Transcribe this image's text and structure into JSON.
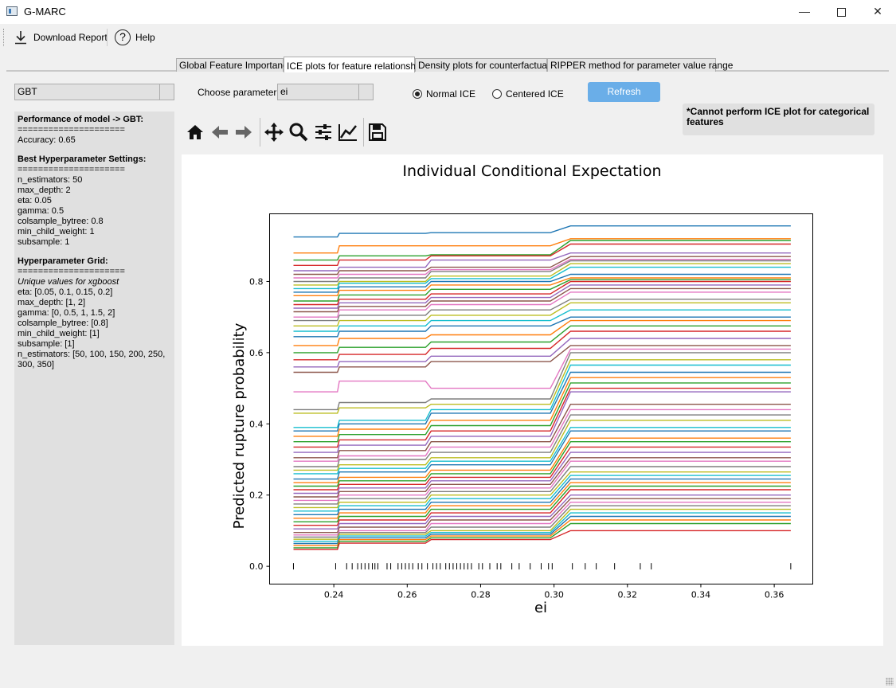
{
  "window": {
    "title": "G-MARC"
  },
  "toolbar": {
    "download_label": "Download Report",
    "help_label": "Help"
  },
  "tabs": [
    {
      "label": "Global Feature Importance"
    },
    {
      "label": "ICE plots for feature relationship"
    },
    {
      "label": "Density plots for counterfactuals"
    },
    {
      "label": "RIPPER method for parameter value range"
    }
  ],
  "controls": {
    "model_value": "GBT",
    "parameter_label": "Choose parameter",
    "parameter_value": "ei",
    "radio_normal": "Normal ICE",
    "radio_centered": "Centered ICE",
    "selected_mode": "Normal ICE",
    "refresh_label": "Refresh",
    "warning": "*Cannot perform ICE plot for categorical features"
  },
  "info": {
    "perf_title": "Performance of model -> GBT:",
    "rule": "=====================",
    "accuracy": "Accuracy: 0.65",
    "best_title": "Best Hyperparameter Settings:",
    "best": [
      "n_estimators: 50",
      "max_depth: 2",
      "eta: 0.05",
      "gamma: 0.5",
      "colsample_bytree: 0.8",
      "min_child_weight: 1",
      "subsample: 1"
    ],
    "grid_title": "Hyperparameter Grid:",
    "grid_subtitle": "Unique values for xgboost",
    "grid": [
      "eta: [0.05, 0.1, 0.15, 0.2]",
      "max_depth: [1, 2]",
      "gamma: [0, 0.5, 1, 1.5, 2]",
      "colsample_bytree: [0.8]",
      "min_child_weight: [1]",
      "subsample: [1]",
      "n_estimators: [50, 100, 150, 200, 250, 300, 350]"
    ]
  },
  "chart_data": {
    "type": "line",
    "title": "Individual Conditional Expectation",
    "xlabel": "ei",
    "ylabel": "Predicted rupture probability",
    "xlim": [
      0.2225,
      0.3705
    ],
    "ylim": [
      -0.05,
      0.99
    ],
    "xticks": [
      0.24,
      0.26,
      0.28,
      0.3,
      0.32,
      0.34,
      0.36
    ],
    "yticks": [
      0.0,
      0.2,
      0.4,
      0.6,
      0.8
    ],
    "grid": false,
    "x": [
      0.229,
      0.241,
      0.2415,
      0.265,
      0.2665,
      0.299,
      0.3045,
      0.3645
    ],
    "rug_y": 0.0,
    "rug": [
      0.229,
      0.2405,
      0.2435,
      0.245,
      0.2465,
      0.2475,
      0.2485,
      0.2495,
      0.2505,
      0.2512,
      0.252,
      0.2545,
      0.2555,
      0.2575,
      0.2585,
      0.2595,
      0.2605,
      0.2615,
      0.263,
      0.264,
      0.2655,
      0.267,
      0.268,
      0.269,
      0.2705,
      0.2715,
      0.2725,
      0.2735,
      0.2745,
      0.2755,
      0.2765,
      0.2775,
      0.2795,
      0.2805,
      0.2825,
      0.2845,
      0.2855,
      0.2885,
      0.2905,
      0.2935,
      0.2965,
      0.2985,
      0.2995,
      0.305,
      0.3085,
      0.3115,
      0.3165,
      0.3235,
      0.3265,
      0.3645
    ],
    "colors": [
      "#1f77b4",
      "#ff7f0e",
      "#2ca02c",
      "#d62728",
      "#9467bd",
      "#8c564b",
      "#e377c2",
      "#7f7f7f",
      "#bcbd22",
      "#17becf"
    ],
    "series": [
      {
        "values": [
          0.925,
          0.925,
          0.935,
          0.935,
          0.937,
          0.937,
          0.956,
          0.956
        ]
      },
      {
        "values": [
          0.88,
          0.88,
          0.9,
          0.9,
          0.9,
          0.9,
          0.92,
          0.92
        ]
      },
      {
        "values": [
          0.86,
          0.86,
          0.872,
          0.872,
          0.875,
          0.875,
          0.915,
          0.915
        ]
      },
      {
        "values": [
          0.845,
          0.845,
          0.86,
          0.86,
          0.872,
          0.872,
          0.905,
          0.905
        ]
      },
      {
        "values": [
          0.83,
          0.83,
          0.84,
          0.84,
          0.86,
          0.86,
          0.88,
          0.88
        ]
      },
      {
        "values": [
          0.82,
          0.82,
          0.83,
          0.83,
          0.84,
          0.84,
          0.87,
          0.87
        ]
      },
      {
        "values": [
          0.81,
          0.81,
          0.82,
          0.82,
          0.833,
          0.833,
          0.862,
          0.862
        ]
      },
      {
        "values": [
          0.8,
          0.8,
          0.81,
          0.81,
          0.828,
          0.828,
          0.858,
          0.858
        ]
      },
      {
        "values": [
          0.79,
          0.79,
          0.8,
          0.8,
          0.815,
          0.815,
          0.85,
          0.85
        ]
      },
      {
        "values": [
          0.78,
          0.78,
          0.795,
          0.795,
          0.808,
          0.808,
          0.84,
          0.84
        ]
      },
      {
        "values": [
          0.77,
          0.77,
          0.785,
          0.785,
          0.8,
          0.8,
          0.82,
          0.82
        ]
      },
      {
        "values": [
          0.76,
          0.76,
          0.775,
          0.775,
          0.79,
          0.79,
          0.81,
          0.81
        ]
      },
      {
        "values": [
          0.745,
          0.745,
          0.762,
          0.762,
          0.778,
          0.778,
          0.805,
          0.805
        ]
      },
      {
        "values": [
          0.735,
          0.735,
          0.75,
          0.75,
          0.765,
          0.765,
          0.8,
          0.8
        ]
      },
      {
        "values": [
          0.725,
          0.725,
          0.74,
          0.74,
          0.755,
          0.755,
          0.79,
          0.79
        ]
      },
      {
        "values": [
          0.715,
          0.715,
          0.73,
          0.73,
          0.745,
          0.745,
          0.78,
          0.78
        ]
      },
      {
        "values": [
          0.7,
          0.7,
          0.72,
          0.72,
          0.735,
          0.735,
          0.77,
          0.77
        ]
      },
      {
        "values": [
          0.69,
          0.69,
          0.705,
          0.705,
          0.72,
          0.72,
          0.75,
          0.75
        ]
      },
      {
        "values": [
          0.675,
          0.675,
          0.69,
          0.69,
          0.705,
          0.705,
          0.74,
          0.74
        ]
      },
      {
        "values": [
          0.66,
          0.66,
          0.675,
          0.675,
          0.69,
          0.69,
          0.72,
          0.72
        ]
      },
      {
        "values": [
          0.645,
          0.645,
          0.66,
          0.66,
          0.675,
          0.675,
          0.7,
          0.7
        ]
      },
      {
        "values": [
          0.62,
          0.62,
          0.64,
          0.64,
          0.65,
          0.65,
          0.69,
          0.69
        ]
      },
      {
        "values": [
          0.6,
          0.6,
          0.615,
          0.615,
          0.63,
          0.63,
          0.675,
          0.675
        ]
      },
      {
        "values": [
          0.58,
          0.58,
          0.595,
          0.595,
          0.612,
          0.612,
          0.66,
          0.66
        ]
      },
      {
        "values": [
          0.56,
          0.56,
          0.575,
          0.575,
          0.59,
          0.59,
          0.64,
          0.64
        ]
      },
      {
        "values": [
          0.545,
          0.545,
          0.56,
          0.56,
          0.575,
          0.575,
          0.62,
          0.62
        ]
      },
      {
        "values": [
          0.49,
          0.49,
          0.52,
          0.52,
          0.5,
          0.5,
          0.61,
          0.61
        ]
      },
      {
        "values": [
          0.44,
          0.44,
          0.46,
          0.46,
          0.47,
          0.47,
          0.6,
          0.6
        ]
      },
      {
        "values": [
          0.43,
          0.43,
          0.445,
          0.445,
          0.455,
          0.455,
          0.58,
          0.58
        ]
      },
      {
        "values": [
          0.39,
          0.39,
          0.41,
          0.41,
          0.44,
          0.44,
          0.565,
          0.565
        ]
      },
      {
        "values": [
          0.38,
          0.38,
          0.4,
          0.4,
          0.43,
          0.43,
          0.545,
          0.545
        ]
      },
      {
        "values": [
          0.365,
          0.365,
          0.385,
          0.385,
          0.41,
          0.41,
          0.53,
          0.53
        ]
      },
      {
        "values": [
          0.35,
          0.35,
          0.37,
          0.37,
          0.395,
          0.395,
          0.515,
          0.515
        ]
      },
      {
        "values": [
          0.335,
          0.335,
          0.355,
          0.355,
          0.38,
          0.38,
          0.5,
          0.5
        ]
      },
      {
        "values": [
          0.32,
          0.32,
          0.34,
          0.34,
          0.365,
          0.365,
          0.49,
          0.49
        ]
      },
      {
        "values": [
          0.305,
          0.305,
          0.325,
          0.325,
          0.35,
          0.35,
          0.455,
          0.455
        ]
      },
      {
        "values": [
          0.295,
          0.295,
          0.31,
          0.31,
          0.335,
          0.335,
          0.44,
          0.44
        ]
      },
      {
        "values": [
          0.28,
          0.28,
          0.3,
          0.3,
          0.32,
          0.32,
          0.425,
          0.425
        ]
      },
      {
        "values": [
          0.27,
          0.27,
          0.285,
          0.285,
          0.305,
          0.305,
          0.41,
          0.41
        ]
      },
      {
        "values": [
          0.26,
          0.26,
          0.275,
          0.275,
          0.295,
          0.295,
          0.39,
          0.39
        ]
      },
      {
        "values": [
          0.245,
          0.245,
          0.265,
          0.265,
          0.285,
          0.285,
          0.38,
          0.38
        ]
      },
      {
        "values": [
          0.235,
          0.235,
          0.25,
          0.25,
          0.27,
          0.27,
          0.36,
          0.36
        ]
      },
      {
        "values": [
          0.225,
          0.225,
          0.24,
          0.24,
          0.26,
          0.26,
          0.35,
          0.35
        ]
      },
      {
        "values": [
          0.215,
          0.215,
          0.23,
          0.23,
          0.25,
          0.25,
          0.335,
          0.335
        ]
      },
      {
        "values": [
          0.205,
          0.205,
          0.22,
          0.22,
          0.24,
          0.24,
          0.32,
          0.32
        ]
      },
      {
        "values": [
          0.195,
          0.195,
          0.21,
          0.21,
          0.23,
          0.23,
          0.305,
          0.305
        ]
      },
      {
        "values": [
          0.185,
          0.185,
          0.2,
          0.2,
          0.22,
          0.22,
          0.295,
          0.295
        ]
      },
      {
        "values": [
          0.175,
          0.175,
          0.19,
          0.19,
          0.21,
          0.21,
          0.28,
          0.28
        ]
      },
      {
        "values": [
          0.165,
          0.165,
          0.18,
          0.18,
          0.2,
          0.2,
          0.265,
          0.265
        ]
      },
      {
        "values": [
          0.155,
          0.155,
          0.17,
          0.17,
          0.19,
          0.19,
          0.255,
          0.255
        ]
      },
      {
        "values": [
          0.145,
          0.145,
          0.16,
          0.16,
          0.18,
          0.18,
          0.245,
          0.245
        ]
      },
      {
        "values": [
          0.135,
          0.135,
          0.15,
          0.15,
          0.17,
          0.17,
          0.235,
          0.235
        ]
      },
      {
        "values": [
          0.125,
          0.125,
          0.14,
          0.14,
          0.16,
          0.16,
          0.225,
          0.225
        ]
      },
      {
        "values": [
          0.115,
          0.115,
          0.13,
          0.13,
          0.15,
          0.15,
          0.215,
          0.215
        ]
      },
      {
        "values": [
          0.105,
          0.105,
          0.12,
          0.12,
          0.14,
          0.14,
          0.2,
          0.2
        ]
      },
      {
        "values": [
          0.095,
          0.095,
          0.11,
          0.11,
          0.13,
          0.13,
          0.19,
          0.19
        ]
      },
      {
        "values": [
          0.088,
          0.088,
          0.1,
          0.1,
          0.12,
          0.12,
          0.18,
          0.18
        ]
      },
      {
        "values": [
          0.082,
          0.082,
          0.095,
          0.095,
          0.11,
          0.11,
          0.17,
          0.17
        ]
      },
      {
        "values": [
          0.076,
          0.076,
          0.09,
          0.09,
          0.1,
          0.1,
          0.16,
          0.16
        ]
      },
      {
        "values": [
          0.07,
          0.07,
          0.085,
          0.085,
          0.095,
          0.095,
          0.15,
          0.15
        ]
      },
      {
        "values": [
          0.064,
          0.064,
          0.08,
          0.08,
          0.09,
          0.09,
          0.14,
          0.14
        ]
      },
      {
        "values": [
          0.058,
          0.058,
          0.075,
          0.075,
          0.085,
          0.085,
          0.13,
          0.13
        ]
      },
      {
        "values": [
          0.052,
          0.052,
          0.07,
          0.07,
          0.08,
          0.08,
          0.12,
          0.12
        ]
      },
      {
        "values": [
          0.047,
          0.047,
          0.065,
          0.065,
          0.075,
          0.075,
          0.1,
          0.1
        ]
      }
    ]
  }
}
